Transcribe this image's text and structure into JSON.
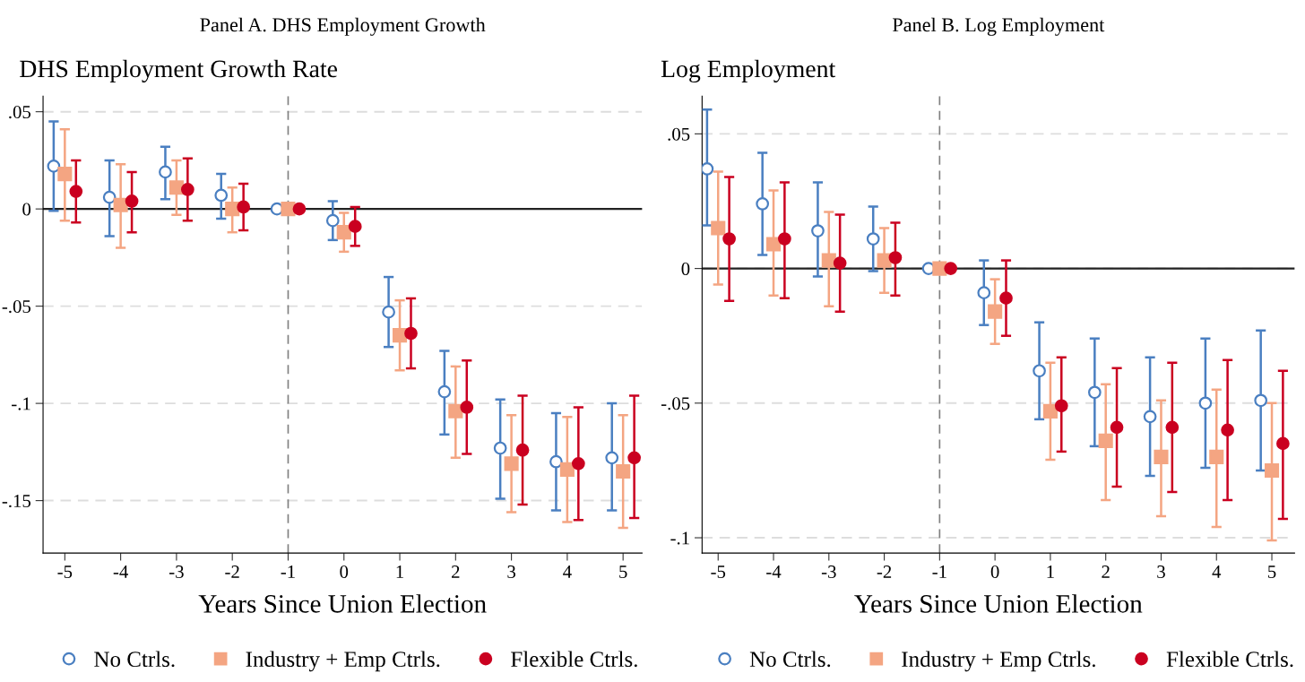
{
  "chart_data": [
    {
      "type": "scatter",
      "title": "Panel A. DHS Employment Growth",
      "ylabel": "DHS Employment Growth Rate",
      "xlabel": "Years Since Union Election",
      "xlim": [
        -5.39,
        5.34
      ],
      "xticks": [
        -5,
        -4,
        -3,
        -2,
        -1,
        0,
        1,
        2,
        3,
        4,
        5
      ],
      "ylim": [
        -0.177,
        0.058
      ],
      "yticks": [
        {
          "value": 0.05,
          "label": ".05"
        },
        0,
        {
          "value": -0.05,
          "label": "-.05"
        },
        {
          "value": -0.1,
          "label": "-.1"
        },
        {
          "value": -0.15,
          "label": "-.15"
        }
      ],
      "grid": "y",
      "legend": "bottom",
      "ref_lines": [
        {
          "axis": "y",
          "value": 0,
          "color": "#222222",
          "line_style": "solid"
        },
        {
          "axis": "x",
          "value": -1,
          "color": "#808080",
          "line_style": "dashed"
        }
      ],
      "series": [
        {
          "name": "No Ctrls.",
          "color": "#4a7fc1",
          "marker": "circle-open",
          "x": [
            -5.2,
            -4.2,
            -3.2,
            -2.2,
            -1.2,
            -0.2,
            0.8,
            1.8,
            2.8,
            3.8,
            4.8
          ],
          "values": [
            0.022,
            0.006,
            0.019,
            0.007,
            0,
            -0.006,
            -0.053,
            -0.094,
            -0.123,
            -0.13,
            -0.128
          ],
          "errors": [
            [
              -0.001,
              0.045
            ],
            [
              -0.014,
              0.025
            ],
            [
              0.005,
              0.032
            ],
            [
              -0.005,
              0.018
            ],
            null,
            [
              -0.016,
              0.004
            ],
            [
              -0.071,
              -0.035
            ],
            [
              -0.116,
              -0.073
            ],
            [
              -0.149,
              -0.098
            ],
            [
              -0.155,
              -0.105
            ],
            [
              -0.155,
              -0.1
            ]
          ]
        },
        {
          "name": "Industry + Emp Ctrls.",
          "color": "#f4a582",
          "marker": "square",
          "x": [
            -5,
            -4,
            -3,
            -2,
            -1,
            0,
            1,
            2,
            3,
            4,
            5
          ],
          "values": [
            0.018,
            0.002,
            0.011,
            0,
            0,
            -0.012,
            -0.065,
            -0.104,
            -0.131,
            -0.134,
            -0.135
          ],
          "errors": [
            [
              -0.006,
              0.041
            ],
            [
              -0.02,
              0.023
            ],
            [
              -0.003,
              0.025
            ],
            [
              -0.012,
              0.011
            ],
            null,
            [
              -0.022,
              -0.002
            ],
            [
              -0.083,
              -0.047
            ],
            [
              -0.128,
              -0.081
            ],
            [
              -0.156,
              -0.106
            ],
            [
              -0.161,
              -0.107
            ],
            [
              -0.164,
              -0.106
            ]
          ]
        },
        {
          "name": "Flexible Ctrls.",
          "color": "#ca0020",
          "marker": "circle",
          "x": [
            -4.8,
            -3.8,
            -2.8,
            -1.8,
            -0.8,
            0.2,
            1.2,
            2.2,
            3.2,
            4.2,
            5.2
          ],
          "values": [
            0.009,
            0.004,
            0.01,
            0.001,
            0,
            -0.009,
            -0.064,
            -0.102,
            -0.124,
            -0.131,
            -0.128
          ],
          "errors": [
            [
              -0.007,
              0.025
            ],
            [
              -0.012,
              0.019
            ],
            [
              -0.006,
              0.026
            ],
            [
              -0.011,
              0.013
            ],
            null,
            [
              -0.019,
              0.001
            ],
            [
              -0.082,
              -0.046
            ],
            [
              -0.126,
              -0.078
            ],
            [
              -0.152,
              -0.096
            ],
            [
              -0.16,
              -0.102
            ],
            [
              -0.159,
              -0.096
            ]
          ]
        }
      ]
    },
    {
      "type": "scatter",
      "title": "Panel B. Log Employment",
      "ylabel": "Log Employment",
      "xlabel": "Years Since Union Election",
      "xlim": [
        -5.29,
        5.41
      ],
      "xticks": [
        -5,
        -4,
        -3,
        -2,
        -1,
        0,
        1,
        2,
        3,
        4,
        5
      ],
      "ylim": [
        -0.1057,
        0.064
      ],
      "yticks": [
        {
          "value": 0.05,
          "label": ".05"
        },
        0,
        {
          "value": -0.05,
          "label": "-.05"
        },
        {
          "value": -0.1,
          "label": "-.1"
        }
      ],
      "grid": "y",
      "legend": "bottom",
      "ref_lines": [
        {
          "axis": "y",
          "value": 0,
          "color": "#222222",
          "line_style": "solid"
        },
        {
          "axis": "x",
          "value": -1,
          "color": "#808080",
          "line_style": "dashed"
        }
      ],
      "series": [
        {
          "name": "No Ctrls.",
          "color": "#4a7fc1",
          "marker": "circle-open",
          "x": [
            -5.2,
            -4.2,
            -3.2,
            -2.2,
            -1.2,
            -0.2,
            0.8,
            1.8,
            2.8,
            3.8,
            4.8
          ],
          "values": [
            0.037,
            0.024,
            0.014,
            0.011,
            0,
            -0.009,
            -0.038,
            -0.046,
            -0.055,
            -0.05,
            -0.049
          ],
          "errors": [
            [
              0.016,
              0.059
            ],
            [
              0.005,
              0.043
            ],
            [
              -0.003,
              0.032
            ],
            [
              -0.001,
              0.023
            ],
            null,
            [
              -0.021,
              0.003
            ],
            [
              -0.056,
              -0.02
            ],
            [
              -0.066,
              -0.026
            ],
            [
              -0.077,
              -0.033
            ],
            [
              -0.074,
              -0.026
            ],
            [
              -0.075,
              -0.023
            ]
          ]
        },
        {
          "name": "Industry + Emp Ctrls.",
          "color": "#f4a582",
          "marker": "square",
          "x": [
            -5,
            -4,
            -3,
            -2,
            -1,
            0,
            1,
            2,
            3,
            4,
            5
          ],
          "values": [
            0.015,
            0.009,
            0.003,
            0.003,
            0,
            -0.016,
            -0.053,
            -0.064,
            -0.07,
            -0.07,
            -0.075
          ],
          "errors": [
            [
              -0.006,
              0.036
            ],
            [
              -0.01,
              0.029
            ],
            [
              -0.014,
              0.021
            ],
            [
              -0.009,
              0.015
            ],
            null,
            [
              -0.028,
              -0.004
            ],
            [
              -0.071,
              -0.035
            ],
            [
              -0.086,
              -0.043
            ],
            [
              -0.092,
              -0.049
            ],
            [
              -0.096,
              -0.045
            ],
            [
              -0.101,
              -0.05
            ]
          ]
        },
        {
          "name": "Flexible Ctrls.",
          "color": "#ca0020",
          "marker": "circle",
          "x": [
            -4.8,
            -3.8,
            -2.8,
            -1.8,
            -0.8,
            0.2,
            1.2,
            2.2,
            3.2,
            4.2,
            5.2
          ],
          "values": [
            0.011,
            0.011,
            0.002,
            0.004,
            0,
            -0.011,
            -0.051,
            -0.059,
            -0.059,
            -0.06,
            -0.065
          ],
          "errors": [
            [
              -0.012,
              0.034
            ],
            [
              -0.011,
              0.032
            ],
            [
              -0.016,
              0.02
            ],
            [
              -0.01,
              0.017
            ],
            null,
            [
              -0.025,
              0.003
            ],
            [
              -0.068,
              -0.033
            ],
            [
              -0.081,
              -0.037
            ],
            [
              -0.083,
              -0.035
            ],
            [
              -0.086,
              -0.034
            ],
            [
              -0.093,
              -0.038
            ]
          ]
        }
      ]
    }
  ]
}
